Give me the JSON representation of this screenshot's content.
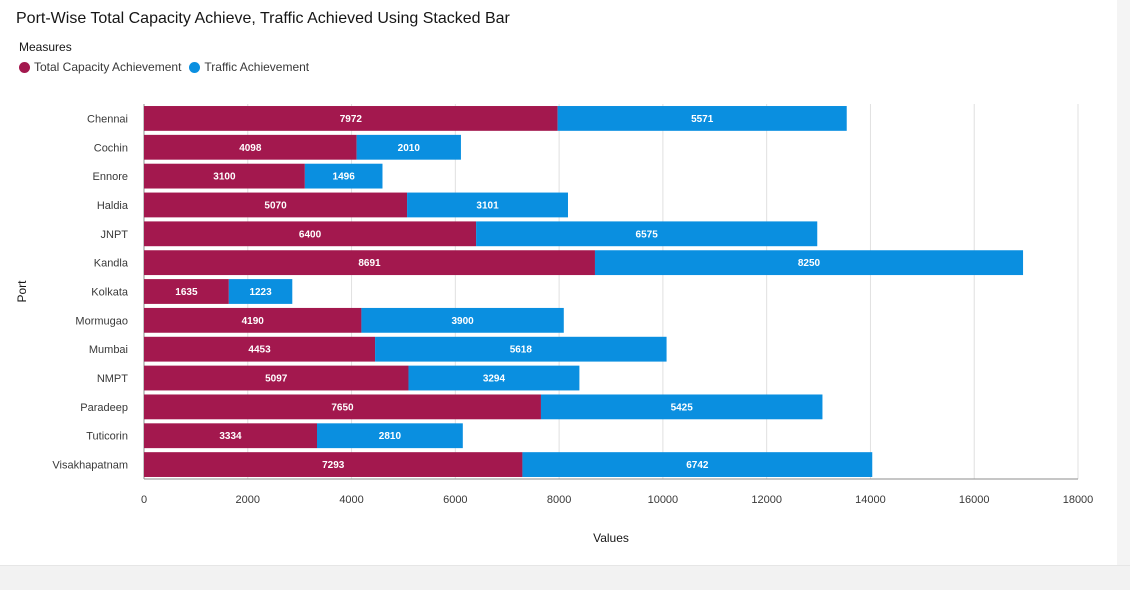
{
  "chart_data": {
    "type": "bar",
    "orientation": "horizontal",
    "stacked": true,
    "title": "Port-Wise Total Capacity Achieve, Traffic Achieved Using Stacked Bar",
    "legend_title": "Measures",
    "legend_placement": "top-left",
    "xlabel": "Values",
    "ylabel": "Port",
    "xlim": [
      0,
      18000
    ],
    "xticks": [
      0,
      2000,
      4000,
      6000,
      8000,
      10000,
      12000,
      14000,
      16000,
      18000
    ],
    "grid": true,
    "categories": [
      "Chennai",
      "Cochin",
      "Ennore",
      "Haldia",
      "JNPT",
      "Kandla",
      "Kolkata",
      "Mormugao",
      "Mumbai",
      "NMPT",
      "Paradeep",
      "Tuticorin",
      "Visakhapatnam"
    ],
    "series": [
      {
        "name": "Total Capacity Achievement",
        "color": "#a3184e",
        "values": [
          7972,
          4098,
          3100,
          5070,
          6400,
          8691,
          1635,
          4190,
          4453,
          5097,
          7650,
          3334,
          7293
        ]
      },
      {
        "name": "Traffic Achievement",
        "color": "#0a8fe0",
        "values": [
          5571,
          2010,
          1496,
          3101,
          6575,
          8250,
          1223,
          3900,
          5618,
          3294,
          5425,
          2810,
          6742
        ]
      }
    ]
  }
}
